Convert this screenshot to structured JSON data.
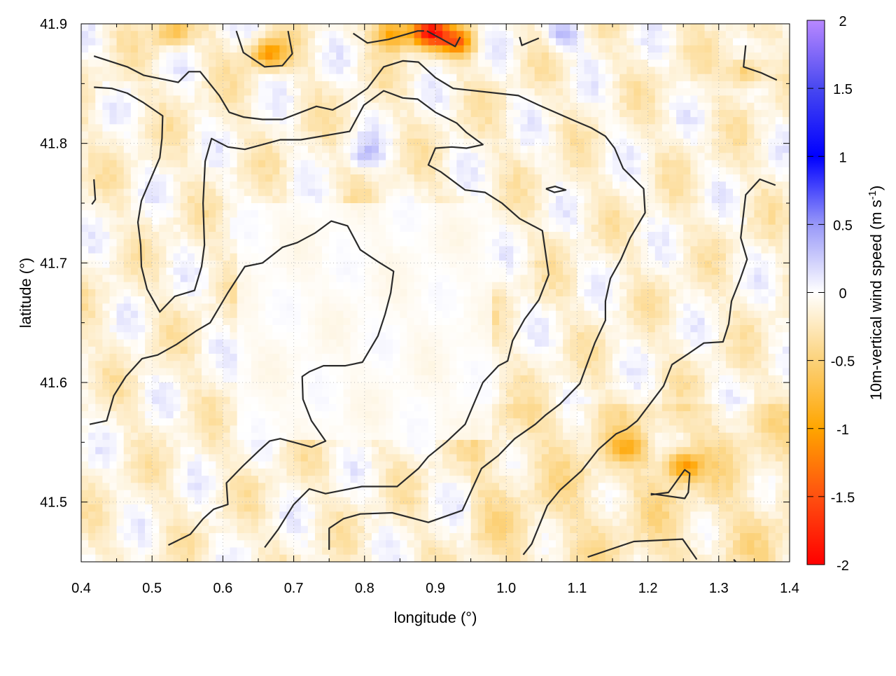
{
  "chart_data": {
    "type": "heatmap",
    "title": "",
    "xlabel": "longitude (°)",
    "ylabel": "latitude (°)",
    "colorbar_label": "10m-vertical wind speed (m s",
    "colorbar_label_sup": "-1",
    "colorbar_label_end": ")",
    "xlim": [
      0.4,
      1.4
    ],
    "ylim": [
      41.45,
      41.9
    ],
    "clim": [
      -2,
      2
    ],
    "grid": true,
    "x_ticks": [
      "0.4",
      "0.5",
      "0.6",
      "0.7",
      "0.8",
      "0.9",
      "1.0",
      "1.1",
      "1.2",
      "1.3",
      "1.4"
    ],
    "y_ticks": [
      "41.5",
      "41.6",
      "41.7",
      "41.8",
      "41.9"
    ],
    "colorbar_ticks": [
      "-2",
      "-1.5",
      "-1",
      "-0.5",
      "0",
      "0.5",
      "1",
      "1.5",
      "2"
    ],
    "colorscale": [
      [
        -2,
        "#ff0000"
      ],
      [
        -1.5,
        "#ff5010"
      ],
      [
        -1,
        "#ffa500"
      ],
      [
        -0.5,
        "#fcd27a"
      ],
      [
        0,
        "#ffffff"
      ],
      [
        0.5,
        "#9898f8"
      ],
      [
        1,
        "#0000ff"
      ],
      [
        1.5,
        "#4848f0"
      ],
      [
        2,
        "#b888ff"
      ]
    ],
    "hotspots": [
      {
        "lon": 0.89,
        "lat": 41.893,
        "value": -1.7
      },
      {
        "lon": 0.93,
        "lat": 41.885,
        "value": -1.1
      },
      {
        "lon": 0.84,
        "lat": 41.892,
        "value": -0.9
      },
      {
        "lon": 0.665,
        "lat": 41.875,
        "value": -0.9
      },
      {
        "lon": 0.53,
        "lat": 41.893,
        "value": -0.6
      },
      {
        "lon": 1.25,
        "lat": 41.53,
        "value": -0.9
      },
      {
        "lon": 1.34,
        "lat": 41.86,
        "value": -0.6
      },
      {
        "lon": 1.17,
        "lat": 41.545,
        "value": -0.5
      },
      {
        "lon": 1.08,
        "lat": 41.89,
        "value": 0.4
      },
      {
        "lon": 0.8,
        "lat": 41.79,
        "value": 0.3
      }
    ],
    "contour_color": "#2b2b2b",
    "contours": [
      [
        [
          0.418,
          41.873
        ],
        [
          0.465,
          41.864
        ],
        [
          0.488,
          41.857
        ],
        [
          0.537,
          41.851
        ],
        [
          0.552,
          41.86
        ],
        [
          0.568,
          41.86
        ],
        [
          0.595,
          41.84
        ],
        [
          0.609,
          41.826
        ],
        [
          0.629,
          41.822
        ],
        [
          0.656,
          41.82
        ],
        [
          0.684,
          41.82
        ],
        [
          0.732,
          41.831
        ],
        [
          0.755,
          41.828
        ],
        [
          0.777,
          41.835
        ],
        [
          0.804,
          41.846
        ],
        [
          0.827,
          41.864
        ],
        [
          0.854,
          41.869
        ],
        [
          0.876,
          41.868
        ],
        [
          0.9,
          41.855
        ],
        [
          0.925,
          41.846
        ],
        [
          1.017,
          41.84
        ],
        [
          1.046,
          41.832
        ],
        [
          1.096,
          41.819
        ],
        [
          1.12,
          41.813
        ],
        [
          1.14,
          41.806
        ],
        [
          1.153,
          41.796
        ],
        [
          1.165,
          41.779
        ],
        [
          1.194,
          41.762
        ],
        [
          1.196,
          41.742
        ],
        [
          1.175,
          41.721
        ],
        [
          1.162,
          41.703
        ],
        [
          1.147,
          41.687
        ],
        [
          1.14,
          41.668
        ],
        [
          1.14,
          41.652
        ],
        [
          1.125,
          41.633
        ],
        [
          1.104,
          41.599
        ],
        [
          1.076,
          41.582
        ],
        [
          1.056,
          41.573
        ],
        [
          1.041,
          41.565
        ],
        [
          1.012,
          41.553
        ],
        [
          0.989,
          41.539
        ],
        [
          0.965,
          41.528
        ],
        [
          0.938,
          41.493
        ],
        [
          0.89,
          41.483
        ],
        [
          0.839,
          41.491
        ],
        [
          0.794,
          41.49
        ],
        [
          0.77,
          41.486
        ],
        [
          0.75,
          41.478
        ],
        [
          0.75,
          41.46
        ]
      ],
      [
        [
          0.418,
          41.847
        ],
        [
          0.443,
          41.846
        ],
        [
          0.465,
          41.842
        ],
        [
          0.488,
          41.834
        ],
        [
          0.515,
          41.823
        ],
        [
          0.514,
          41.804
        ],
        [
          0.511,
          41.788
        ],
        [
          0.485,
          41.752
        ],
        [
          0.48,
          41.734
        ],
        [
          0.484,
          41.715
        ],
        [
          0.485,
          41.697
        ],
        [
          0.493,
          41.678
        ],
        [
          0.511,
          41.659
        ],
        [
          0.532,
          41.672
        ],
        [
          0.56,
          41.677
        ],
        [
          0.57,
          41.697
        ],
        [
          0.574,
          41.715
        ],
        [
          0.572,
          41.75
        ],
        [
          0.575,
          41.785
        ],
        [
          0.584,
          41.804
        ],
        [
          0.607,
          41.797
        ],
        [
          0.631,
          41.795
        ],
        [
          0.681,
          41.803
        ],
        [
          0.71,
          41.803
        ],
        [
          0.779,
          41.81
        ],
        [
          0.799,
          41.832
        ],
        [
          0.827,
          41.844
        ],
        [
          0.854,
          41.838
        ],
        [
          0.875,
          41.837
        ],
        [
          0.9,
          41.826
        ],
        [
          0.93,
          41.817
        ],
        [
          0.944,
          41.809
        ],
        [
          0.967,
          41.799
        ],
        [
          0.944,
          41.796
        ],
        [
          0.923,
          41.797
        ],
        [
          0.9,
          41.796
        ],
        [
          0.89,
          41.782
        ],
        [
          0.908,
          41.776
        ],
        [
          0.942,
          41.761
        ],
        [
          0.97,
          41.759
        ],
        [
          0.994,
          41.75
        ],
        [
          1.019,
          41.737
        ],
        [
          1.051,
          41.727
        ],
        [
          1.06,
          41.69
        ],
        [
          1.046,
          41.669
        ],
        [
          1.026,
          41.653
        ],
        [
          1.009,
          41.635
        ],
        [
          1.002,
          41.618
        ],
        [
          0.989,
          41.614
        ],
        [
          0.967,
          41.6
        ],
        [
          0.942,
          41.565
        ],
        [
          0.915,
          41.55
        ],
        [
          0.89,
          41.538
        ],
        [
          0.876,
          41.528
        ],
        [
          0.846,
          41.513
        ],
        [
          0.796,
          41.513
        ],
        [
          0.745,
          41.507
        ],
        [
          0.722,
          41.511
        ],
        [
          0.7,
          41.498
        ],
        [
          0.678,
          41.477
        ],
        [
          0.659,
          41.462
        ]
      ],
      [
        [
          0.412,
          41.565
        ],
        [
          0.436,
          41.568
        ],
        [
          0.446,
          41.589
        ],
        [
          0.463,
          41.605
        ],
        [
          0.486,
          41.62
        ],
        [
          0.508,
          41.623
        ],
        [
          0.535,
          41.632
        ],
        [
          0.562,
          41.643
        ],
        [
          0.582,
          41.65
        ],
        [
          0.607,
          41.675
        ],
        [
          0.631,
          41.697
        ],
        [
          0.656,
          41.7
        ],
        [
          0.684,
          41.713
        ],
        [
          0.705,
          41.717
        ],
        [
          0.73,
          41.725
        ],
        [
          0.753,
          41.735
        ],
        [
          0.776,
          41.731
        ],
        [
          0.794,
          41.711
        ],
        [
          0.819,
          41.701
        ],
        [
          0.841,
          41.693
        ],
        [
          0.837,
          41.675
        ],
        [
          0.829,
          41.657
        ],
        [
          0.819,
          41.639
        ],
        [
          0.797,
          41.617
        ],
        [
          0.773,
          41.614
        ],
        [
          0.742,
          41.614
        ],
        [
          0.722,
          41.609
        ],
        [
          0.712,
          41.605
        ],
        [
          0.713,
          41.586
        ],
        [
          0.725,
          41.568
        ],
        [
          0.745,
          41.551
        ],
        [
          0.725,
          41.546
        ],
        [
          0.7,
          41.55
        ],
        [
          0.681,
          41.553
        ],
        [
          0.666,
          41.551
        ],
        [
          0.651,
          41.543
        ],
        [
          0.628,
          41.53
        ],
        [
          0.605,
          41.516
        ],
        [
          0.607,
          41.498
        ],
        [
          0.587,
          41.494
        ],
        [
          0.572,
          41.486
        ],
        [
          0.554,
          41.473
        ],
        [
          0.523,
          41.464
        ]
      ],
      [
        [
          1.38,
          41.765
        ],
        [
          1.358,
          41.77
        ],
        [
          1.338,
          41.757
        ],
        [
          1.331,
          41.721
        ],
        [
          1.34,
          41.703
        ],
        [
          1.33,
          41.686
        ],
        [
          1.318,
          41.668
        ],
        [
          1.314,
          41.649
        ],
        [
          1.306,
          41.634
        ],
        [
          1.279,
          41.633
        ],
        [
          1.257,
          41.624
        ],
        [
          1.234,
          41.615
        ],
        [
          1.222,
          41.597
        ],
        [
          1.199,
          41.579
        ],
        [
          1.185,
          41.568
        ],
        [
          1.17,
          41.561
        ],
        [
          1.155,
          41.557
        ],
        [
          1.13,
          41.544
        ],
        [
          1.106,
          41.526
        ],
        [
          1.076,
          41.51
        ],
        [
          1.058,
          41.497
        ],
        [
          1.036,
          41.465
        ],
        [
          1.024,
          41.456
        ]
      ],
      [
        [
          1.115,
          41.454
        ],
        [
          1.155,
          41.462
        ],
        [
          1.18,
          41.467
        ],
        [
          1.249,
          41.469
        ],
        [
          1.269,
          41.452
        ]
      ],
      [
        [
          1.204,
          41.506
        ],
        [
          1.229,
          41.508
        ],
        [
          1.252,
          41.527
        ],
        [
          1.259,
          41.524
        ],
        [
          1.257,
          41.508
        ],
        [
          1.252,
          41.503
        ],
        [
          1.204,
          41.507
        ]
      ],
      [
        [
          1.056,
          41.762
        ],
        [
          1.069,
          41.764
        ],
        [
          1.084,
          41.761
        ],
        [
          1.068,
          41.759
        ],
        [
          1.056,
          41.762
        ]
      ],
      [
        [
          0.619,
          41.894
        ],
        [
          0.629,
          41.876
        ],
        [
          0.659,
          41.864
        ],
        [
          0.684,
          41.865
        ],
        [
          0.698,
          41.875
        ],
        [
          0.692,
          41.894
        ]
      ],
      [
        [
          0.784,
          41.892
        ],
        [
          0.804,
          41.884
        ],
        [
          0.834,
          41.887
        ],
        [
          0.875,
          41.894
        ],
        [
          0.884,
          41.894
        ]
      ],
      [
        [
          0.888,
          41.894
        ],
        [
          0.928,
          41.881
        ],
        [
          0.935,
          41.889
        ]
      ],
      [
        [
          1.019,
          41.889
        ],
        [
          1.022,
          41.882
        ],
        [
          1.046,
          41.888
        ]
      ],
      [
        [
          1.338,
          41.882
        ],
        [
          1.335,
          41.864
        ],
        [
          1.36,
          41.859
        ],
        [
          1.382,
          41.853
        ]
      ],
      [
        [
          0.418,
          41.77
        ],
        [
          0.42,
          41.753
        ],
        [
          0.415,
          41.749
        ]
      ],
      [
        [
          1.321,
          41.452
        ],
        [
          1.324,
          41.45
        ]
      ]
    ]
  }
}
